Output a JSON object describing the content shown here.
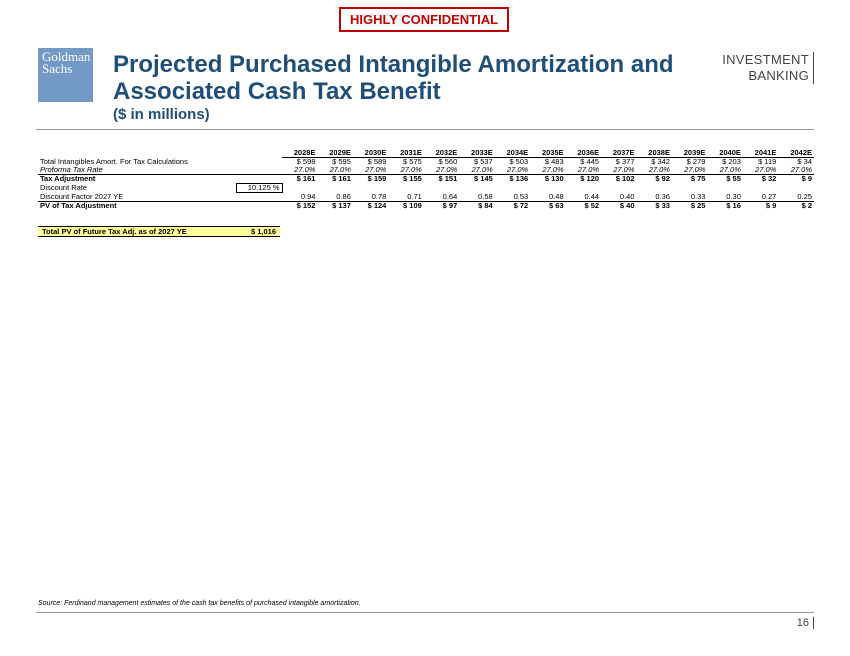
{
  "header": {
    "confidential": "HIGHLY CONFIDENTIAL",
    "logo_line1": "Goldman",
    "logo_line2": "Sachs",
    "title_line1": "Projected Purchased Intangible Amortization and",
    "title_line2": "Associated Cash Tax Benefit",
    "subtitle": "($ in millions)",
    "ib_line1": "INVESTMENT",
    "ib_line2": "BANKING",
    "brand_color": "#7399c6",
    "title_color": "#1f4e79"
  },
  "table": {
    "years": [
      "2028E",
      "2029E",
      "2030E",
      "2031E",
      "2032E",
      "2033E",
      "2034E",
      "2035E",
      "2036E",
      "2037E",
      "2038E",
      "2039E",
      "2040E",
      "2041E",
      "2042E"
    ],
    "rows": [
      {
        "label": "Total Intangibles Amort. For Tax Calculations",
        "style": "normal",
        "values": [
          "$ 598",
          "$ 595",
          "$ 589",
          "$ 575",
          "$ 560",
          "$ 537",
          "$ 503",
          "$ 483",
          "$ 445",
          "$ 377",
          "$ 342",
          "$ 279",
          "$ 203",
          "$ 119",
          "$ 34"
        ]
      },
      {
        "label": "Proforma Tax Rate",
        "style": "italic",
        "values": [
          "27.0%",
          "27.0%",
          "27.0%",
          "27.0%",
          "27.0%",
          "27.0%",
          "27.0%",
          "27.0%",
          "27.0%",
          "27.0%",
          "27.0%",
          "27.0%",
          "27.0%",
          "27.0%",
          "27.0%"
        ]
      },
      {
        "label": "Tax Adjustment",
        "style": "bold-top",
        "values": [
          "$ 161",
          "$ 161",
          "$ 159",
          "$ 155",
          "$ 151",
          "$ 145",
          "$ 136",
          "$ 130",
          "$ 120",
          "$ 102",
          "$ 92",
          "$ 75",
          "$ 55",
          "$ 32",
          "$ 9"
        ]
      },
      {
        "label": "Discount Rate",
        "style": "rate",
        "rate": "10.125 %",
        "values": []
      },
      {
        "label": "Discount Factor 2027 YE",
        "style": "normal",
        "values": [
          "0.94",
          "0.86",
          "0.78",
          "0.71",
          "0.64",
          "0.58",
          "0.53",
          "0.48",
          "0.44",
          "0.40",
          "0.36",
          "0.33",
          "0.30",
          "0.27",
          "0.25"
        ]
      },
      {
        "label": "PV of Tax Adjustment",
        "style": "bold-top",
        "values": [
          "$ 152",
          "$ 137",
          "$ 124",
          "$ 109",
          "$ 97",
          "$ 84",
          "$ 72",
          "$ 63",
          "$ 52",
          "$ 40",
          "$ 33",
          "$ 25",
          "$ 16",
          "$ 9",
          "$ 2"
        ]
      }
    ]
  },
  "total": {
    "label": "Total PV of Future Tax Adj. as of 2027 YE",
    "value": "$ 1,016"
  },
  "footer": {
    "source": "Source: Ferdinand management estimates of the cash tax benefits of purchased intangible amortization.",
    "page": "16"
  }
}
